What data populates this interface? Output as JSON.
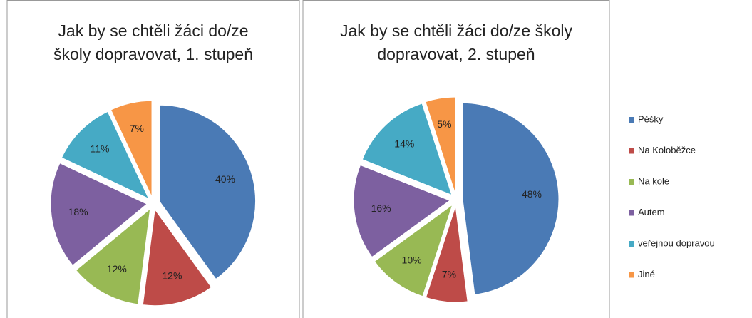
{
  "chart_data": [
    {
      "type": "pie",
      "title": [
        "Jak by se chtěli žáci do/ze",
        "školy dopravovat, 1. stupeň"
      ],
      "values": [
        40,
        12,
        12,
        18,
        11,
        7
      ],
      "value_labels": [
        "40%",
        "12%",
        "12%",
        "18%",
        "11%",
        "7%"
      ]
    },
    {
      "type": "pie",
      "title": [
        "Jak by se chtěli žáci do/ze školy",
        "dopravovat, 2. stupeň"
      ],
      "values": [
        48,
        7,
        10,
        16,
        14,
        5
      ],
      "value_labels": [
        "48%",
        "7%",
        "10%",
        "16%",
        "14%",
        "5%"
      ]
    }
  ],
  "legend": {
    "series": [
      {
        "name": "Pěšky",
        "color": "#4a7ab5"
      },
      {
        "name": "Na Koloběžce",
        "color": "#be4b48"
      },
      {
        "name": "Na kole",
        "color": "#98b954"
      },
      {
        "name": "Autem",
        "color": "#7d60a0"
      },
      {
        "name": "veřejnou dopravou",
        "color": "#46aac5"
      },
      {
        "name": "Jiné",
        "color": "#f79646"
      }
    ]
  }
}
